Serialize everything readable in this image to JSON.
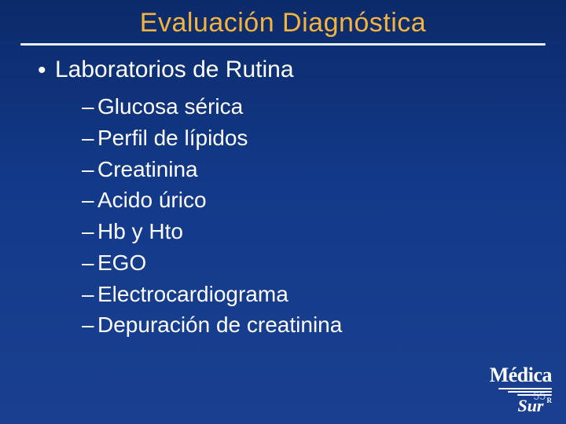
{
  "style": {
    "background_gradient": [
      "#0b2a6a",
      "#133a8a",
      "#1a3f90"
    ],
    "title_color": "#f4b43c",
    "text_color": "#ffffff",
    "underline_color": "#e6f0ff",
    "title_fontsize": 34,
    "l1_fontsize": 30,
    "l2_fontsize": 28,
    "font_family": "Verdana, Tahoma, sans-serif"
  },
  "title": "Evaluación Diagnóstica",
  "l1": {
    "bullet": "•",
    "text": "Laboratorios de Rutina"
  },
  "l2_dash": "–",
  "l2_items": [
    "Glucosa sérica",
    "Perfil de lípidos",
    "Creatinina",
    "Acido úrico",
    "Hb y Hto",
    "EGO",
    "Electrocardiograma",
    "Depuración de creatinina"
  ],
  "logo": {
    "line1": "Médica",
    "line2": "Sur",
    "registered": "R"
  },
  "page_number": "55"
}
